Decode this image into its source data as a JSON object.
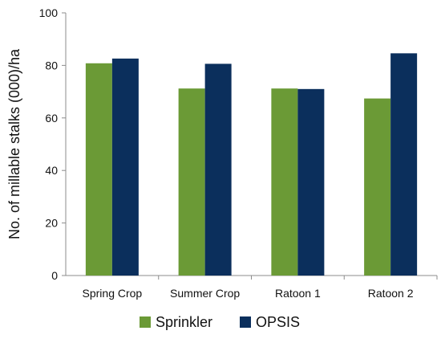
{
  "chart_data": {
    "type": "bar",
    "title": "",
    "xlabel": "",
    "ylabel": "No. of millable stalks (000)/ha",
    "ylim": [
      0,
      100
    ],
    "yticks": [
      0,
      20,
      40,
      60,
      80,
      100
    ],
    "grid": false,
    "legend_position": "bottom",
    "categories": [
      "Spring Crop",
      "Summer Crop",
      "Ratoon 1",
      "Ratoon 2"
    ],
    "series": [
      {
        "name": "Sprinkler",
        "color": "#6B9A36",
        "values": [
          80.8,
          71.2,
          71.2,
          67.4
        ]
      },
      {
        "name": "OPSIS",
        "color": "#0B2F5C",
        "values": [
          82.6,
          80.6,
          71.0,
          84.6
        ]
      }
    ]
  }
}
